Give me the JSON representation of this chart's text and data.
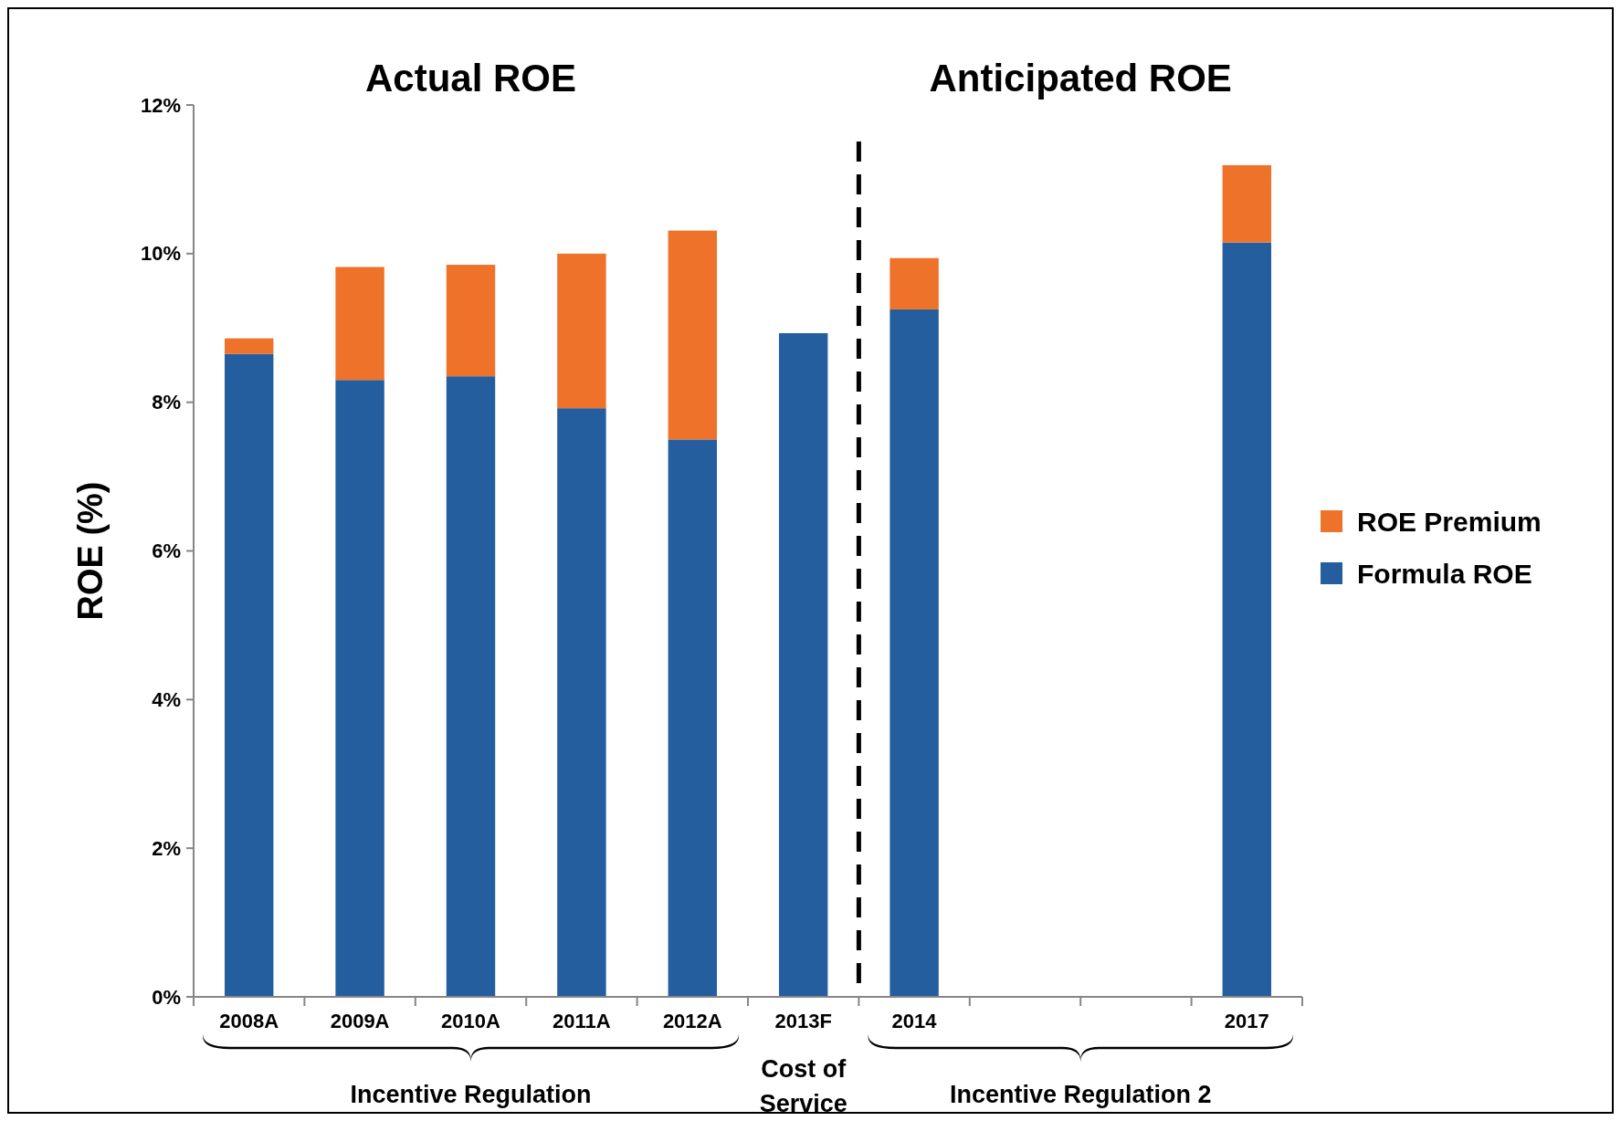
{
  "chart_data": {
    "type": "bar",
    "stacked": true,
    "ylabel": "ROE (%)",
    "categories": [
      "2008A",
      "2009A",
      "2010A",
      "2011A",
      "2012A",
      "2013F",
      "2014",
      null,
      null,
      "2017"
    ],
    "series": [
      {
        "name": "Formula ROE",
        "color": "#255e9f",
        "values": [
          8.65,
          8.3,
          8.35,
          7.92,
          7.5,
          8.93,
          9.25,
          null,
          null,
          10.15
        ]
      },
      {
        "name": "ROE Premium",
        "color": "#ee7229",
        "values": [
          0.21,
          1.52,
          1.5,
          2.08,
          2.81,
          null,
          0.69,
          null,
          null,
          1.04
        ]
      }
    ],
    "ylim": [
      0,
      12
    ],
    "yticks": [
      {
        "value": 0,
        "label": "0%"
      },
      {
        "value": 2,
        "label": "2%"
      },
      {
        "value": 4,
        "label": "4%"
      },
      {
        "value": 6,
        "label": "6%"
      },
      {
        "value": 8,
        "label": "8%"
      },
      {
        "value": 10,
        "label": "10%"
      },
      {
        "value": 12,
        "label": "12%"
      }
    ],
    "annotations": [
      "Actual ROE",
      "Anticipated ROE",
      "Incentive Regulation",
      "Cost of Service",
      "Incentive Regulation 2"
    ],
    "legend": "right",
    "grid": false
  }
}
